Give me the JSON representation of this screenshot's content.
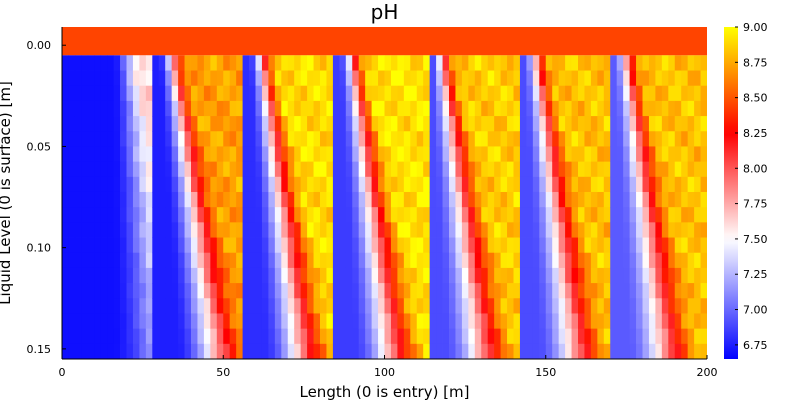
{
  "chart_data": {
    "type": "heatmap",
    "title": "pH",
    "xlabel": "Length (0 is entry) [m]",
    "ylabel": "Liquid Level (0 is surface) [m]",
    "xlim": [
      0,
      200
    ],
    "ylim": [
      0.155,
      -0.009
    ],
    "x_ticks": [
      "0",
      "50",
      "100",
      "150",
      "200"
    ],
    "y_ticks": [
      "0.00",
      "0.05",
      "0.10",
      "0.15"
    ],
    "colorbar": {
      "ticks": [
        "6.75",
        "7.00",
        "7.25",
        "7.50",
        "7.75",
        "8.00",
        "8.25",
        "8.50",
        "8.75",
        "9.00"
      ],
      "range": [
        6.65,
        9.0
      ],
      "colors": [
        "#0000ff",
        "#ffffff",
        "#ff0000",
        "#ffff00"
      ]
    },
    "surface_layer": {
      "depth_range": [
        -0.009,
        0.005
      ],
      "value": 8.45
    },
    "grid": {
      "n_columns": 100,
      "n_rows": 20,
      "depth_range": [
        0.005,
        0.155
      ]
    },
    "injection_points_x": [
      28,
      57,
      85,
      114,
      142,
      170
    ],
    "lobe_shapes": [
      {
        "x_start": 0,
        "x_end": 28,
        "low": 6.7,
        "high": 7.62,
        "ramp_top": 20,
        "ramp_bottom": 28
      },
      {
        "x_start": 28,
        "x_end": 57,
        "low": 6.75,
        "high": 8.72,
        "ramp_top": 34,
        "ramp_bottom": 48
      },
      {
        "x_start": 57,
        "x_end": 85,
        "low": 6.8,
        "high": 8.9,
        "ramp_top": 62,
        "ramp_bottom": 75
      },
      {
        "x_start": 85,
        "x_end": 114,
        "low": 6.85,
        "high": 8.92,
        "ramp_top": 90,
        "ramp_bottom": 103
      },
      {
        "x_start": 114,
        "x_end": 142,
        "low": 6.9,
        "high": 8.85,
        "ramp_top": 118,
        "ramp_bottom": 131
      },
      {
        "x_start": 142,
        "x_end": 170,
        "low": 6.9,
        "high": 8.82,
        "ramp_top": 147,
        "ramp_bottom": 160
      },
      {
        "x_start": 170,
        "x_end": 200,
        "low": 6.95,
        "high": 8.82,
        "ramp_top": 175,
        "ramp_bottom": 188
      }
    ]
  }
}
